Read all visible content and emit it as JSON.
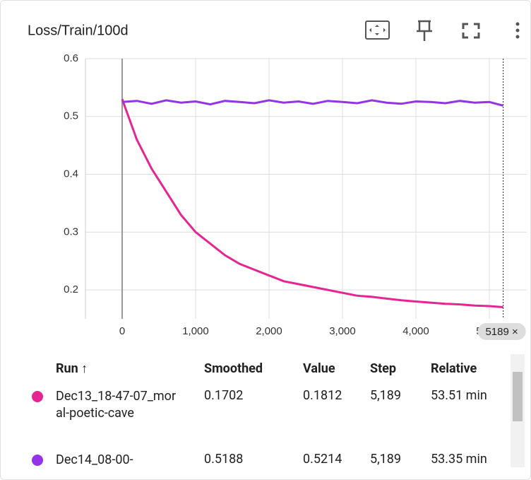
{
  "chart_data": {
    "type": "line",
    "title": "Loss/Train/100d",
    "x": [
      0,
      200,
      400,
      600,
      800,
      1000,
      1200,
      1400,
      1600,
      1800,
      2000,
      2200,
      2400,
      2600,
      2800,
      3000,
      3200,
      3400,
      3600,
      3800,
      4000,
      4200,
      4400,
      4600,
      4800,
      5000,
      5189
    ],
    "series": [
      {
        "name": "Dec13_18-47-07_moral-poetic-cave",
        "color": "#e52592",
        "values": [
          0.53,
          0.46,
          0.41,
          0.37,
          0.33,
          0.3,
          0.28,
          0.26,
          0.245,
          0.235,
          0.225,
          0.215,
          0.21,
          0.205,
          0.2,
          0.195,
          0.19,
          0.188,
          0.185,
          0.182,
          0.18,
          0.178,
          0.176,
          0.175,
          0.173,
          0.172,
          0.1702
        ]
      },
      {
        "name": "Dec14_08-00-",
        "color": "#9334e6",
        "values": [
          0.525,
          0.527,
          0.522,
          0.528,
          0.524,
          0.526,
          0.521,
          0.527,
          0.525,
          0.523,
          0.528,
          0.524,
          0.526,
          0.522,
          0.527,
          0.525,
          0.523,
          0.528,
          0.524,
          0.522,
          0.526,
          0.525,
          0.523,
          0.527,
          0.524,
          0.525,
          0.5188
        ]
      }
    ],
    "xlim": [
      -500,
      5510
    ],
    "ylim": [
      0.15,
      0.6
    ],
    "xticks": [
      0,
      {
        "value": 1000,
        "label": "1,000"
      },
      {
        "value": 2000,
        "label": "2,000"
      },
      {
        "value": 3000,
        "label": "3,000"
      },
      {
        "value": 4000,
        "label": "4,000"
      },
      {
        "value": 5000,
        "label": "5,000"
      }
    ],
    "yticks": [
      0.2,
      0.3,
      0.4,
      0.5,
      0.6
    ],
    "grid": true,
    "hover_step": 5189,
    "hover_label": "5189 ×"
  },
  "table": {
    "headers": [
      "Run ↑",
      "Smoothed",
      "Value",
      "Step",
      "Relative"
    ],
    "rows": [
      [
        "Dec13_18-47-07_moral-poetic-cave",
        "0.1702",
        "0.1812",
        "5,189",
        "53.51 min"
      ],
      [
        "Dec14_08-00-",
        "0.5188",
        "0.5214",
        "5,189",
        "53.35 min"
      ]
    ]
  }
}
